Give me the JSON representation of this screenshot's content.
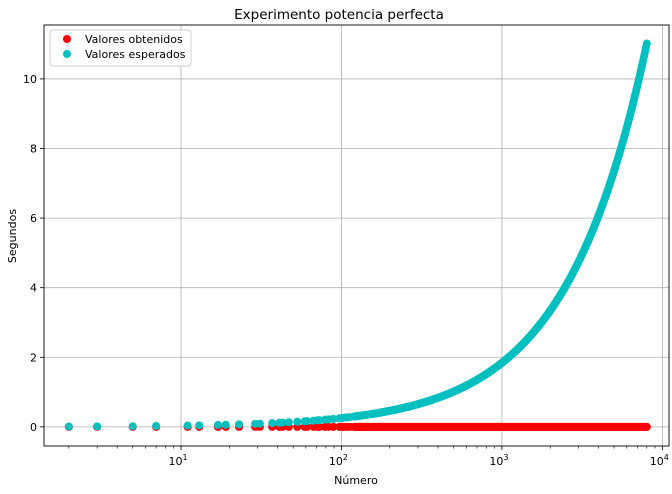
{
  "chart_data": {
    "type": "scatter",
    "title": "Experimento potencia perfecta",
    "xlabel": "Número",
    "ylabel": "Segundos",
    "x_scale": "log",
    "xlim": [
      1.4,
      11000
    ],
    "ylim": [
      -0.55,
      11.55
    ],
    "x_ticks": [
      {
        "value": 10,
        "base": "10",
        "exp": "1"
      },
      {
        "value": 100,
        "base": "10",
        "exp": "2"
      },
      {
        "value": 1000,
        "base": "10",
        "exp": "3"
      },
      {
        "value": 10000,
        "base": "10",
        "exp": "4"
      }
    ],
    "y_ticks": [
      0,
      2,
      4,
      6,
      8,
      10
    ],
    "grid": true,
    "legend_position": "upper left",
    "series": [
      {
        "name": "Valores obtenidos",
        "color": "#ff0000",
        "marker": "circle",
        "sparse_x": [
          2,
          3,
          5,
          7,
          11,
          13,
          17,
          19,
          23,
          29,
          31,
          37,
          41,
          43,
          47,
          53,
          59,
          61,
          67,
          71,
          73,
          79,
          83,
          89,
          97,
          101,
          103,
          107,
          109,
          113
        ],
        "dense_x_range": [
          120,
          8000
        ],
        "y_value": 0
      },
      {
        "name": "Valores esperados",
        "color": "#00bfbf",
        "marker": "circle",
        "sparse_x": [
          2,
          3,
          5,
          7,
          11,
          13,
          17,
          19,
          23,
          29,
          31,
          37,
          41,
          43,
          47,
          53,
          59,
          61,
          67,
          71,
          73,
          79,
          83,
          89,
          97,
          101,
          103,
          107,
          109,
          113
        ],
        "dense_x_range": [
          120,
          8000
        ],
        "model": "y = 0.0188 * (x/1000)^2 * ... (approx. y ≈ 1.84 at x=1000, y ≈ 11.0 at x=8000)",
        "y_at_1000": 1.84,
        "y_at_8000": 11.02
      }
    ]
  },
  "colors": {
    "grid": "#b0b0b0",
    "axes": "#000000",
    "obtained": "#ff0000",
    "expected": "#00bfbf"
  }
}
